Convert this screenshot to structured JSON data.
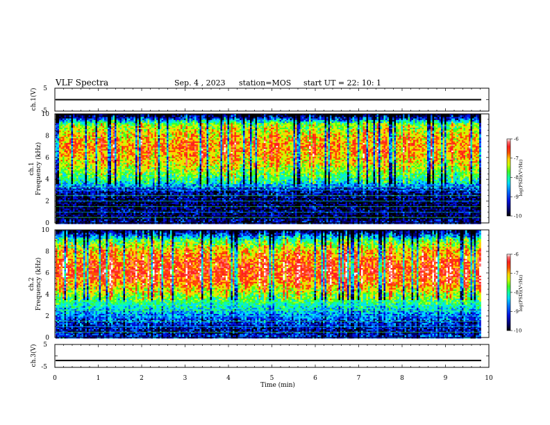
{
  "header": {
    "title": "VLF Spectra",
    "date": "Sep. 4 , 2023",
    "station": "station=MOS",
    "start_ut": "start UT =  22: 10: 1"
  },
  "colors": {
    "spectrum_palette": [
      "#000000",
      "#000066",
      "#0010dd",
      "#0070ff",
      "#00d8ff",
      "#10ffa0",
      "#40ff20",
      "#c8ff00",
      "#ffd000",
      "#ff5000",
      "#ff2020",
      "#ff7070",
      "#ffffff"
    ]
  },
  "chart_data": [
    {
      "type": "line",
      "panel": "ch1-voltage",
      "ylabel": "ch.1(V)",
      "ylim": [
        -5,
        5
      ],
      "yticks": [
        "5",
        "-5"
      ],
      "x": [
        0,
        10
      ],
      "values": [
        0,
        0
      ],
      "xlim": [
        0,
        10
      ]
    },
    {
      "type": "heatmap",
      "panel": "ch1-spectrogram",
      "ylabel": "ch.1\nFrequency (kHz)",
      "ylabel_lines": [
        "ch.1",
        "Frequency (kHz)"
      ],
      "ylim": [
        0,
        10
      ],
      "yticks": [
        "0",
        "2",
        "4",
        "6",
        "8",
        "10"
      ],
      "xlim": [
        0,
        10
      ],
      "data_end_min": 9.8,
      "colorbar": {
        "label": "log(PSD)(V²/Hz)",
        "range": [
          -10,
          -6
        ],
        "ticks": [
          "-6",
          "-7",
          "-8",
          "-9",
          "-10"
        ]
      },
      "profile_freq_khz": [
        0,
        0.5,
        1,
        2,
        3,
        3.5,
        4,
        5,
        6,
        7,
        8,
        9,
        9.5,
        10
      ],
      "profile_logpsd": [
        -9.3,
        -9.6,
        -9.5,
        -9.6,
        -9.2,
        -8.6,
        -8.2,
        -7.6,
        -7.2,
        -7.0,
        -7.3,
        -7.7,
        -9.0,
        -10.0
      ]
    },
    {
      "type": "heatmap",
      "panel": "ch2-spectrogram",
      "ylabel": "ch.2\nFrequency (kHz)",
      "ylabel_lines": [
        "ch.2",
        "Frequency (kHz)"
      ],
      "ylim": [
        0,
        10
      ],
      "yticks": [
        "0",
        "2",
        "4",
        "6",
        "8",
        "10"
      ],
      "xlim": [
        0,
        10
      ],
      "data_end_min": 9.8,
      "colorbar": {
        "label": "log(PSD)(V²/Hz)",
        "range": [
          -10,
          -6
        ],
        "ticks": [
          "-6",
          "-7",
          "-8",
          "-9",
          "-10"
        ]
      },
      "profile_freq_khz": [
        0,
        0.5,
        1,
        2,
        3,
        4,
        5,
        6,
        7,
        8,
        9,
        9.5,
        10
      ],
      "profile_logpsd": [
        -9.0,
        -9.4,
        -9.2,
        -8.8,
        -8.2,
        -7.7,
        -7.0,
        -6.6,
        -6.8,
        -7.2,
        -8.0,
        -9.0,
        -9.8
      ]
    },
    {
      "type": "line",
      "panel": "ch3-voltage",
      "ylabel": "ch.3(V)",
      "ylim": [
        -5,
        5
      ],
      "yticks": [
        "5",
        "-5"
      ],
      "x": [
        0,
        10
      ],
      "values": [
        -2,
        -2
      ],
      "xlim": [
        0,
        10
      ],
      "xlabel": "Time (min)",
      "xticks": [
        "0",
        "1",
        "2",
        "3",
        "4",
        "5",
        "6",
        "7",
        "8",
        "9",
        "10"
      ]
    }
  ]
}
